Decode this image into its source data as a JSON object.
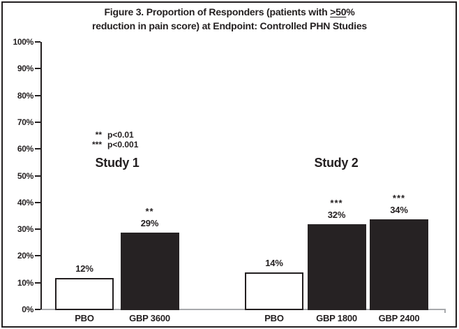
{
  "figure": {
    "title_line1_pre": "Figure 3. Proportion of Responders (patients with ",
    "title_underlined": ">50",
    "title_line1_post": "%",
    "title_line2": "reduction in pain score) at Endpoint: Controlled PHN Studies"
  },
  "legend": {
    "items": [
      {
        "symbol": "**",
        "label": "p<0.01"
      },
      {
        "symbol": "***",
        "label": "p<0.001"
      }
    ]
  },
  "chart_data": {
    "type": "bar",
    "title": "Figure 3. Proportion of Responders (patients with ≥50% reduction in pain score) at Endpoint: Controlled PHN Studies",
    "xlabel": "",
    "ylabel": "",
    "ylim": [
      0,
      100
    ],
    "y_ticks": [
      0,
      10,
      20,
      30,
      40,
      50,
      60,
      70,
      80,
      90,
      100
    ],
    "y_tick_suffix": "%",
    "grid": false,
    "legend_position": "upper-left-inside",
    "significance_legend": {
      "**": "p<0.01",
      "***": "p<0.001"
    },
    "groups": [
      {
        "label": "Study 1",
        "bars": [
          {
            "category": "PBO",
            "value": 12,
            "value_label": "12%",
            "fill": "white",
            "significance": ""
          },
          {
            "category": "GBP 3600",
            "value": 29,
            "value_label": "29%",
            "fill": "black",
            "significance": "**"
          }
        ]
      },
      {
        "label": "Study 2",
        "bars": [
          {
            "category": "PBO",
            "value": 14,
            "value_label": "14%",
            "fill": "white",
            "significance": ""
          },
          {
            "category": "GBP 1800",
            "value": 32,
            "value_label": "32%",
            "fill": "black",
            "significance": "***"
          },
          {
            "category": "GBP 2400",
            "value": 34,
            "value_label": "34%",
            "fill": "black",
            "significance": "***"
          }
        ]
      }
    ],
    "colors": {
      "bar_black": "#262223",
      "bar_white": "#ffffff",
      "bar_border": "#231f20",
      "baseline_gray": "#a7a9ac",
      "text": "#231f20"
    }
  }
}
